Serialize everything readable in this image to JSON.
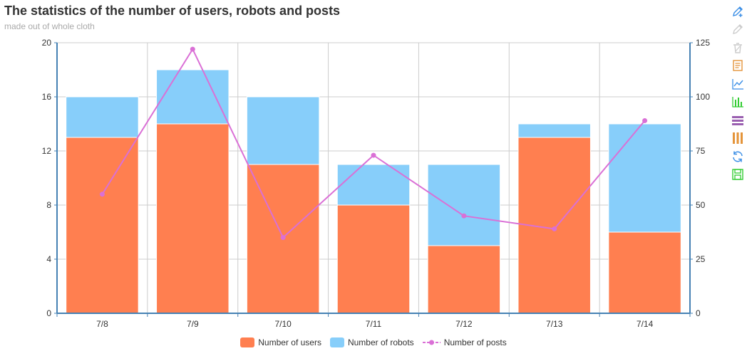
{
  "title": "The statistics of the number of users, robots and posts",
  "subtitle": "made out of whole cloth",
  "toolbox": [
    {
      "name": "mark-icon",
      "color": "#3a8ee6"
    },
    {
      "name": "mark-undo-icon",
      "color": "#cccccc"
    },
    {
      "name": "mark-clear-icon",
      "color": "#cccccc"
    },
    {
      "name": "data-view-icon",
      "color": "#e4943a"
    },
    {
      "name": "line-chart-icon",
      "color": "#3a8ee6"
    },
    {
      "name": "bar-chart-icon",
      "color": "#33cc33"
    },
    {
      "name": "stack-icon",
      "color": "#9a5fb0"
    },
    {
      "name": "tiled-icon",
      "color": "#e4943a"
    },
    {
      "name": "restore-icon",
      "color": "#3a8ee6"
    },
    {
      "name": "save-image-icon",
      "color": "#33cc33"
    }
  ],
  "chart_data": {
    "type": "bar",
    "categories": [
      "7/8",
      "7/9",
      "7/10",
      "7/11",
      "7/12",
      "7/13",
      "7/14"
    ],
    "series": [
      {
        "name": "Number of users",
        "type": "bar",
        "stack": true,
        "axis": "left",
        "color": "#ff7f50",
        "values": [
          13,
          14,
          11,
          8,
          5,
          13,
          6
        ]
      },
      {
        "name": "Number of robots",
        "type": "bar",
        "stack": true,
        "axis": "left",
        "color": "#87cefa",
        "values": [
          3,
          4,
          5,
          3,
          6,
          1,
          8
        ]
      },
      {
        "name": "Number of posts",
        "type": "line",
        "axis": "right",
        "color": "#da70d6",
        "values": [
          55,
          122,
          35,
          73,
          45,
          39,
          89
        ]
      }
    ],
    "y_left": {
      "min": 0,
      "max": 20,
      "ticks": [
        "0",
        "4",
        "8",
        "12",
        "16",
        "20"
      ]
    },
    "y_right": {
      "min": 0,
      "max": 125,
      "ticks": [
        "0",
        "25",
        "50",
        "75",
        "100",
        "125"
      ]
    },
    "grid": true,
    "legend_position": "bottom-center"
  }
}
